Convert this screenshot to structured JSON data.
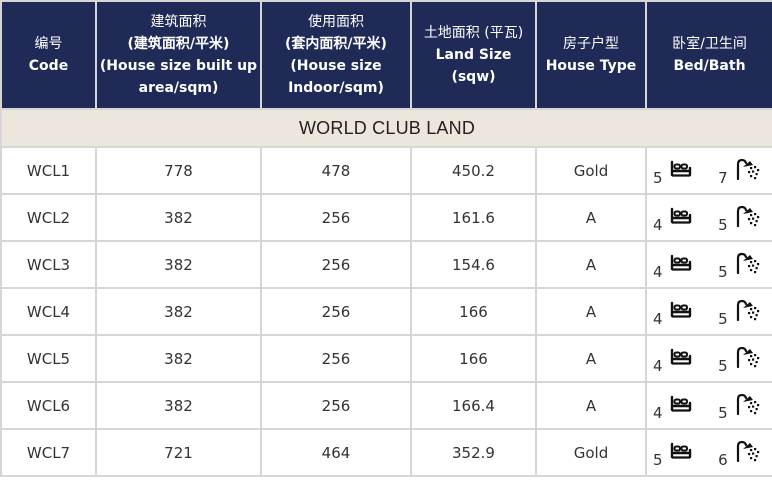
{
  "headers": [
    {
      "cn": "编号",
      "en": "Code"
    },
    {
      "cn": "建筑面积",
      "cn2": "(建筑面积/平米)",
      "en": "(House size built up area/sqm)"
    },
    {
      "cn": "使用面积",
      "cn2": "(套内面积/平米)",
      "en": "(House size Indoor/sqm)"
    },
    {
      "cn": "土地面积 (平瓦)",
      "en": "Land Size (sqw)"
    },
    {
      "cn": "房子户型",
      "en": "House Type"
    },
    {
      "cn": "卧室/卫生间",
      "en": "Bed/Bath"
    }
  ],
  "section_title": "WORLD CLUB LAND",
  "rows": [
    {
      "code": "WCL1",
      "built": "778",
      "indoor": "478",
      "land": "450.2",
      "type": "Gold",
      "bed": "5",
      "bath": "7"
    },
    {
      "code": "WCL2",
      "built": "382",
      "indoor": "256",
      "land": "161.6",
      "type": "A",
      "bed": "4",
      "bath": "5"
    },
    {
      "code": "WCL3",
      "built": "382",
      "indoor": "256",
      "land": "154.6",
      "type": "A",
      "bed": "4",
      "bath": "5"
    },
    {
      "code": "WCL4",
      "built": "382",
      "indoor": "256",
      "land": "166",
      "type": "A",
      "bed": "4",
      "bath": "5"
    },
    {
      "code": "WCL5",
      "built": "382",
      "indoor": "256",
      "land": "166",
      "type": "A",
      "bed": "4",
      "bath": "5"
    },
    {
      "code": "WCL6",
      "built": "382",
      "indoor": "256",
      "land": "166.4",
      "type": "A",
      "bed": "4",
      "bath": "5"
    },
    {
      "code": "WCL7",
      "built": "721",
      "indoor": "464",
      "land": "352.9",
      "type": "Gold",
      "bed": "5",
      "bath": "6"
    }
  ],
  "icons": {
    "bed": "bed-icon",
    "bath": "shower-icon"
  },
  "colors": {
    "header_bg": "#1f2a56",
    "section_bg": "#ece6dc",
    "border": "#d6d6d6"
  }
}
